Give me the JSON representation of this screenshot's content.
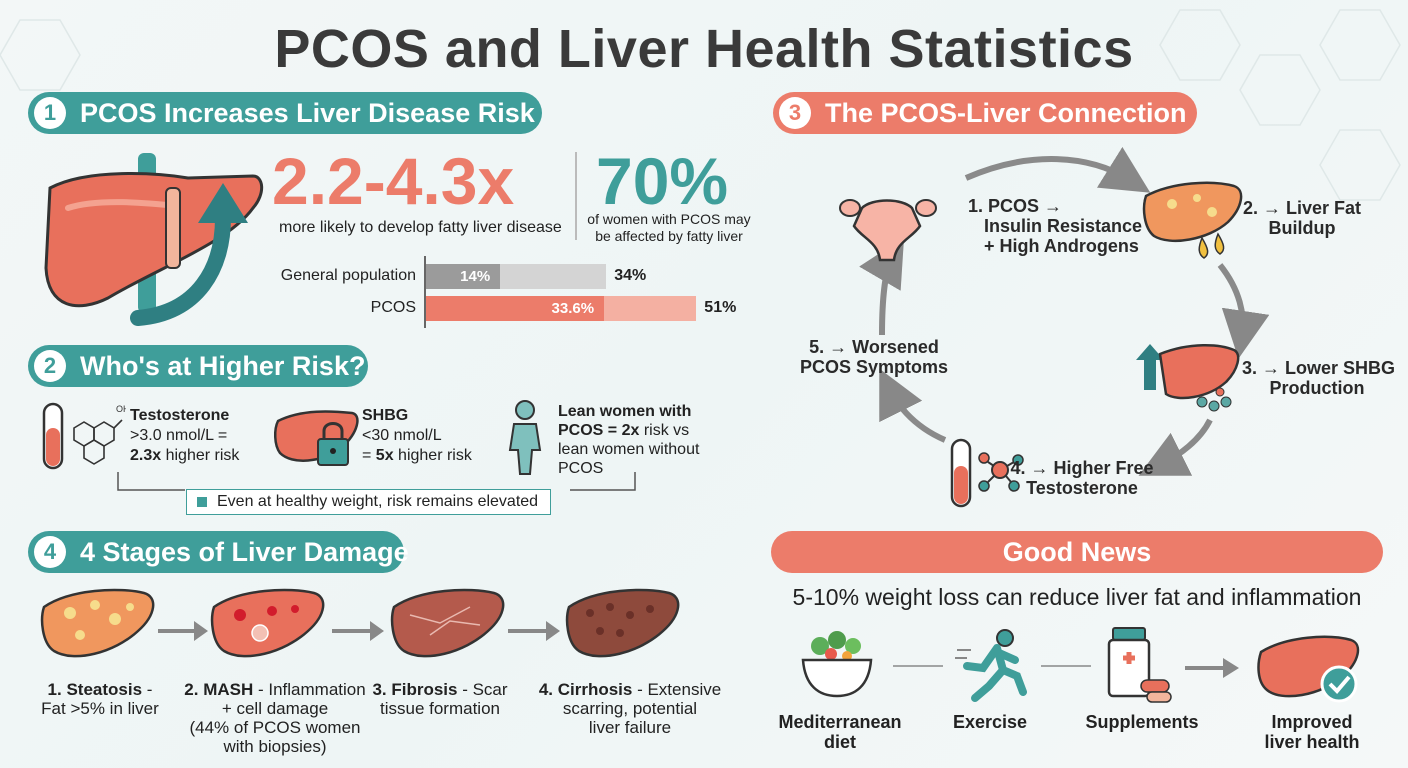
{
  "title": "PCOS and Liver Health Statistics",
  "colors": {
    "teal": "#3f9e9a",
    "coral": "#ec7c6a",
    "liver": "#e8705c",
    "grey": "#d6d6d6"
  },
  "section1": {
    "number": "1",
    "heading": "PCOS Increases Liver Disease Risk",
    "stat1_value": "2.2-4.3x",
    "stat1_caption": "more likely to develop fatty liver disease",
    "stat2_value": "70%",
    "stat2_caption_line1": "of women with PCOS may",
    "stat2_caption_line2": "be affected by fatty liver",
    "bars": [
      {
        "label": "General population",
        "inner_label": "14%",
        "inner_value": 14,
        "outer_label": "34%",
        "outer_value": 34
      },
      {
        "label": "PCOS",
        "inner_label": "33.6%",
        "inner_value": 33.6,
        "outer_label": "51%",
        "outer_value": 51
      }
    ]
  },
  "section2": {
    "number": "2",
    "heading": "Who's at Higher Risk?",
    "testosterone": {
      "title": "Testosterone",
      "line1": ">3.0 nmol/L =",
      "line2_bold": "2.3x",
      "line2_rest": " higher risk"
    },
    "shbg": {
      "title": "SHBG",
      "line1": "<30 nmol/L",
      "line2_pre": "= ",
      "line2_bold": "5x",
      "line2_rest": " higher risk"
    },
    "lean": {
      "line1": "Lean women with",
      "line2_bold": "PCOS = 2x",
      "line2_rest": " risk vs",
      "line3": "lean women without",
      "line4": "PCOS"
    },
    "note": "Even at healthy weight, risk remains elevated"
  },
  "section3": {
    "number": "3",
    "heading": "The PCOS-Liver Connection",
    "steps": [
      {
        "line1": "1. PCOS →",
        "line2": "Insulin Resistance",
        "line3": "+ High Androgens"
      },
      {
        "line1": "2. → Liver Fat",
        "line2": "Buildup"
      },
      {
        "line1": "3. → Lower SHBG",
        "line2": "Production"
      },
      {
        "line1": "4. → Higher Free",
        "line2": "Testosterone"
      },
      {
        "line1": "5. → Worsened",
        "line2": "PCOS Symptoms"
      }
    ]
  },
  "section4": {
    "number": "4",
    "heading": "4 Stages of Liver Damage",
    "stages": [
      {
        "bold": "1. Steatosis",
        "rest_line1": " -",
        "line2": "Fat >5% in liver",
        "line3": ""
      },
      {
        "bold": "2. MASH",
        "rest_line1": " - Inflammation",
        "line2": "+ cell damage",
        "line3": "(44% of PCOS women",
        "line4": "with biopsies)"
      },
      {
        "bold": "3. Fibrosis",
        "rest_line1": " - Scar",
        "line2": "tissue formation",
        "line3": ""
      },
      {
        "bold": "4. Cirrhosis",
        "rest_line1": " - Extensive",
        "line2": "scarring, potential",
        "line3": "liver failure"
      }
    ]
  },
  "good_news": {
    "heading": "Good News",
    "subtitle": "5-10% weight loss can reduce liver fat and inflammation",
    "items": [
      {
        "line1": "Mediterranean",
        "line2": "diet",
        "icon": "salad-bowl-icon"
      },
      {
        "line1": "Exercise",
        "line2": "",
        "icon": "running-person-icon"
      },
      {
        "line1": "Supplements",
        "line2": "",
        "icon": "pill-bottle-icon"
      },
      {
        "line1": "Improved",
        "line2": "liver health",
        "icon": "healthy-liver-check-icon"
      }
    ]
  }
}
